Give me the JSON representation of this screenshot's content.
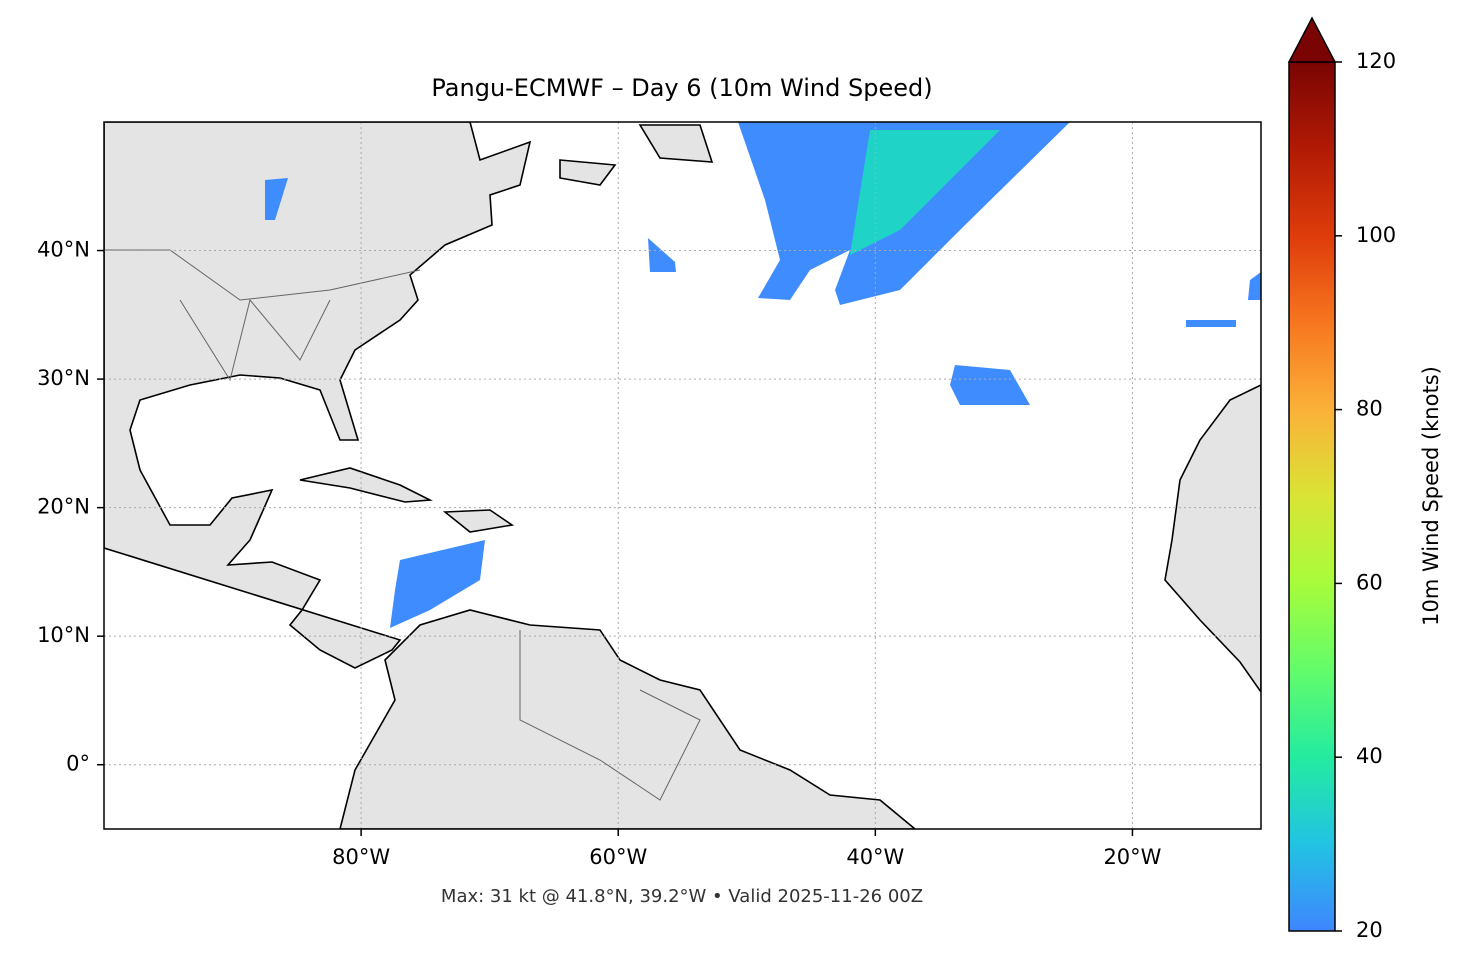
{
  "chart_data": {
    "type": "map",
    "title": "Pangu-ECMWF – Day 6 (10m Wind Speed)",
    "xlim": [
      -100,
      -10
    ],
    "ylim": [
      -5,
      50
    ],
    "xticks": [
      {
        "value": -80,
        "label": "80°W"
      },
      {
        "value": -60,
        "label": "60°W"
      },
      {
        "value": -40,
        "label": "40°W"
      },
      {
        "value": -20,
        "label": "20°W"
      }
    ],
    "yticks": [
      {
        "value": 0,
        "label": "0°"
      },
      {
        "value": 10,
        "label": "10°N"
      },
      {
        "value": 20,
        "label": "20°N"
      },
      {
        "value": 30,
        "label": "30°N"
      },
      {
        "value": 40,
        "label": "40°N"
      }
    ],
    "grid": true,
    "colorbar": {
      "label": "10m Wind Speed (knots)",
      "lim": [
        20,
        120
      ],
      "ticks": [
        20,
        40,
        60,
        80,
        100,
        120
      ]
    },
    "footer": "Max: 31 kt @ 41.8°N, 39.2°W • Valid 2025-11-26 00Z"
  }
}
